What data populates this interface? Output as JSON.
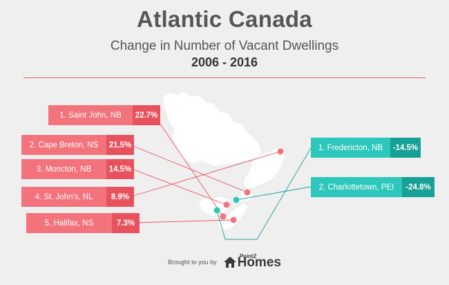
{
  "title": "Atlantic Canada",
  "subtitle": "Change in Number of Vacant Dwellings",
  "years": "2006 - 2016",
  "increases": [
    {
      "name": "1. Saint John, NB",
      "value": "22.7%"
    },
    {
      "name": "2. Cape Breton, NS",
      "value": "21.5%"
    },
    {
      "name": "3. Moncton, NB",
      "value": "14.5%"
    },
    {
      "name": "4. St. John's, NL",
      "value": "8.9%"
    },
    {
      "name": "5. Halifax, NS",
      "value": "7.3%"
    }
  ],
  "decreases": [
    {
      "name": "1. Fredericton, NB",
      "value": "-14.5%"
    },
    {
      "name": "2. Charlottetown, PEI",
      "value": "-24.8%"
    }
  ],
  "footer": {
    "brought_by": "Brought to you by",
    "brand_small": "Point2",
    "brand": "Homes"
  },
  "colors": {
    "increase": "#e8525d",
    "decrease": "#17a196",
    "background": "#efefef",
    "map": "#ffffff"
  }
}
